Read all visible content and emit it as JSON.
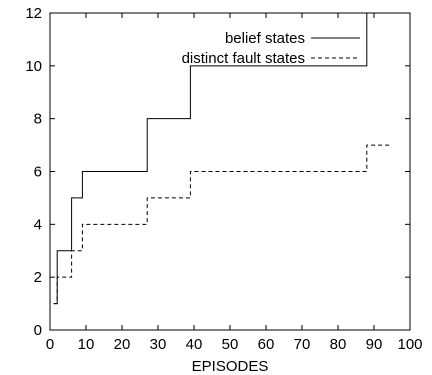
{
  "chart_data": {
    "type": "line",
    "title": "",
    "xlabel": "EPISODES",
    "ylabel": "",
    "xlim": [
      0,
      100
    ],
    "ylim": [
      0,
      12
    ],
    "xticks": [
      0,
      10,
      20,
      30,
      40,
      50,
      60,
      70,
      80,
      90,
      100
    ],
    "yticks": [
      0,
      2,
      4,
      6,
      8,
      10,
      12
    ],
    "xtick_labels": [
      "0",
      "10",
      "20",
      "30",
      "40",
      "50",
      "60",
      "70",
      "80",
      "90",
      "100"
    ],
    "ytick_labels": [
      "0",
      "2",
      "4",
      "6",
      "8",
      "10",
      "12"
    ],
    "grid": false,
    "legend_position": "top-right",
    "step": true,
    "series": [
      {
        "name": "belief states",
        "line_style": "solid",
        "color": "#000000",
        "x": [
          1,
          2,
          3,
          6,
          7,
          9,
          26,
          27,
          38,
          39,
          87,
          88
        ],
        "y": [
          1,
          3,
          3,
          5,
          5,
          6,
          6,
          8,
          8,
          10,
          10,
          12
        ]
      },
      {
        "name": "distinct fault states",
        "line_style": "dashed",
        "color": "#000000",
        "x": [
          1,
          2,
          3,
          6,
          7,
          9,
          26,
          27,
          38,
          39,
          87,
          88,
          95
        ],
        "y": [
          1,
          2,
          2,
          3,
          3,
          4,
          4,
          5,
          5,
          6,
          6,
          7,
          7
        ]
      }
    ]
  }
}
